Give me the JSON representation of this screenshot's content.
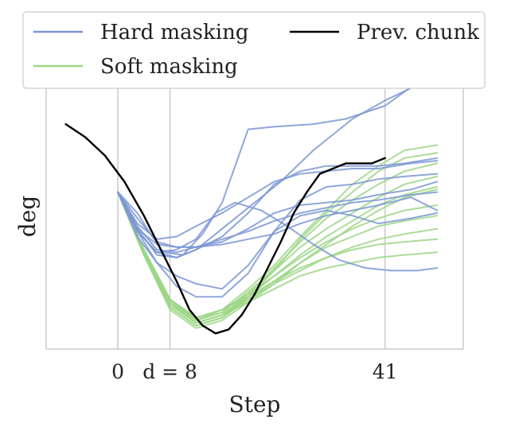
{
  "chart_data": {
    "type": "line",
    "xlabel": "Step",
    "ylabel": "deg",
    "xlim": [
      -11,
      53
    ],
    "ylim": [
      0,
      10
    ],
    "x_ticks": [
      {
        "value": 0,
        "label": "0"
      },
      {
        "value": 8,
        "label": "d = 8"
      },
      {
        "value": 41,
        "label": "41"
      }
    ],
    "show_y_ticks": false,
    "grid": "vertical lines at x ticks",
    "legend_position": "top",
    "legend": [
      {
        "label": "Hard masking",
        "color": "#7b96d4"
      },
      {
        "label": "Prev. chunk",
        "color": "#000000"
      },
      {
        "label": "Soft masking",
        "color": "#9cd686"
      }
    ],
    "series": [
      {
        "group": "Prev. chunk",
        "x": [
          -8,
          -5,
          -2,
          1,
          4,
          7,
          9,
          11,
          13,
          15,
          17,
          19,
          21,
          23,
          25,
          27,
          29,
          31,
          35,
          39,
          41
        ],
        "y": [
          8.6,
          8.1,
          7.4,
          6.4,
          5.1,
          3.6,
          2.6,
          1.5,
          0.9,
          0.6,
          0.75,
          1.3,
          2.1,
          3.1,
          4.1,
          5.2,
          6.0,
          6.7,
          7.1,
          7.1,
          7.3
        ]
      },
      {
        "group": "Hard masking",
        "x": [
          0,
          3,
          5,
          7,
          10,
          13,
          16,
          20,
          24,
          30,
          35,
          41,
          46,
          49
        ],
        "y": [
          6.0,
          5.2,
          4.4,
          3.7,
          3.6,
          4.4,
          5.6,
          8.4,
          8.5,
          8.6,
          8.8,
          9.3,
          10.2,
          10.3
        ]
      },
      {
        "group": "Hard masking",
        "x": [
          0,
          3,
          6,
          9,
          12,
          16,
          20,
          25,
          30,
          36,
          41,
          46,
          49
        ],
        "y": [
          6.0,
          4.5,
          3.7,
          3.5,
          3.8,
          4.6,
          5.4,
          6.4,
          7.6,
          8.8,
          9.5,
          10.1,
          10.3
        ]
      },
      {
        "group": "Hard masking",
        "x": [
          0,
          3,
          6,
          9,
          12,
          16,
          20,
          24,
          28,
          32,
          36,
          40,
          45,
          49
        ],
        "y": [
          6.0,
          4.8,
          4.2,
          4.3,
          4.7,
          5.2,
          5.8,
          6.4,
          6.7,
          6.8,
          6.9,
          6.9,
          7.1,
          7.2
        ]
      },
      {
        "group": "Hard masking",
        "x": [
          0,
          3,
          6,
          9,
          12,
          16,
          20,
          24,
          28,
          32,
          36,
          40,
          45,
          49
        ],
        "y": [
          6.0,
          5.0,
          4.1,
          3.9,
          3.9,
          4.1,
          4.6,
          5.2,
          5.5,
          5.6,
          5.7,
          5.9,
          6.1,
          6.4
        ]
      },
      {
        "group": "Hard masking",
        "x": [
          0,
          3,
          6,
          9,
          12,
          16,
          20,
          24,
          28,
          32,
          36,
          40,
          45,
          49
        ],
        "y": [
          6.0,
          4.7,
          3.8,
          3.7,
          3.9,
          4.2,
          4.5,
          4.9,
          5.2,
          5.4,
          5.6,
          5.7,
          5.9,
          6.0
        ]
      },
      {
        "group": "Hard masking",
        "x": [
          0,
          3,
          6,
          9,
          12,
          15,
          18,
          22,
          26,
          30,
          34,
          38,
          42,
          46,
          49
        ],
        "y": [
          6.0,
          4.5,
          3.7,
          3.8,
          4.2,
          5.2,
          5.6,
          5.3,
          4.7,
          4.0,
          3.4,
          3.1,
          3.0,
          3.0,
          3.1
        ]
      },
      {
        "group": "Hard masking",
        "x": [
          0,
          3,
          6,
          9,
          12,
          16,
          20,
          24,
          28,
          32,
          36,
          40,
          45,
          49
        ],
        "y": [
          6.0,
          4.6,
          4.0,
          3.9,
          3.9,
          4.0,
          4.2,
          4.4,
          4.8,
          5.1,
          5.3,
          5.5,
          5.8,
          5.3
        ]
      },
      {
        "group": "Hard masking",
        "x": [
          0,
          3,
          6,
          9,
          12,
          16,
          20,
          24,
          28,
          32,
          36,
          40,
          45,
          49
        ],
        "y": [
          6.0,
          4.3,
          3.3,
          2.8,
          2.5,
          2.3,
          3.2,
          4.5,
          5.1,
          5.3,
          5.1,
          4.8,
          5.0,
          5.2
        ]
      },
      {
        "group": "Hard masking",
        "x": [
          0,
          3,
          6,
          9,
          12,
          16,
          20,
          24,
          28,
          32,
          36,
          40,
          44,
          49
        ],
        "y": [
          6.0,
          4.5,
          3.3,
          2.4,
          2.0,
          2.0,
          2.9,
          4.5,
          5.7,
          6.2,
          6.3,
          6.5,
          6.6,
          6.7
        ]
      },
      {
        "group": "Hard masking",
        "x": [
          0,
          3,
          6,
          9,
          12,
          16,
          20,
          24,
          28,
          32,
          36,
          40,
          44,
          49
        ],
        "y": [
          6.0,
          4.6,
          3.6,
          3.5,
          3.8,
          4.3,
          5.2,
          6.3,
          6.8,
          7.0,
          7.0,
          7.0,
          7.1,
          7.3
        ]
      },
      {
        "group": "Soft masking",
        "x": [
          0,
          4,
          8,
          12,
          16,
          20,
          24,
          28,
          32,
          36,
          40,
          44,
          49
        ],
        "y": [
          6.0,
          3.8,
          1.9,
          1.1,
          1.5,
          2.3,
          3.2,
          4.3,
          5.3,
          6.3,
          7.0,
          7.6,
          7.8
        ]
      },
      {
        "group": "Soft masking",
        "x": [
          0,
          4,
          8,
          12,
          16,
          20,
          24,
          28,
          32,
          36,
          40,
          44,
          49
        ],
        "y": [
          6.0,
          3.6,
          1.6,
          0.9,
          1.2,
          2.0,
          3.0,
          4.2,
          5.2,
          6.0,
          6.8,
          7.3,
          7.5
        ]
      },
      {
        "group": "Soft masking",
        "x": [
          0,
          4,
          8,
          12,
          16,
          20,
          24,
          28,
          32,
          36,
          40,
          44,
          49
        ],
        "y": [
          6.0,
          3.7,
          1.8,
          1.0,
          1.3,
          2.1,
          3.1,
          4.1,
          5.0,
          5.7,
          6.3,
          6.8,
          7.1
        ]
      },
      {
        "group": "Soft masking",
        "x": [
          0,
          4,
          8,
          12,
          16,
          20,
          24,
          28,
          32,
          36,
          40,
          44,
          49
        ],
        "y": [
          6.0,
          3.8,
          1.9,
          1.1,
          1.4,
          2.2,
          3.0,
          3.9,
          4.6,
          5.2,
          5.8,
          6.3,
          6.6
        ]
      },
      {
        "group": "Soft masking",
        "x": [
          0,
          4,
          8,
          12,
          16,
          20,
          24,
          28,
          32,
          36,
          40,
          44,
          49
        ],
        "y": [
          6.0,
          3.7,
          1.7,
          1.0,
          1.3,
          2.0,
          2.8,
          3.6,
          4.3,
          4.9,
          5.5,
          5.9,
          6.2
        ]
      },
      {
        "group": "Soft masking",
        "x": [
          0,
          4,
          8,
          12,
          16,
          20,
          24,
          28,
          32,
          36,
          40,
          44,
          49
        ],
        "y": [
          6.0,
          3.8,
          1.9,
          1.2,
          1.5,
          2.1,
          2.8,
          3.5,
          4.1,
          4.6,
          5.0,
          5.3,
          5.5
        ]
      },
      {
        "group": "Soft masking",
        "x": [
          0,
          4,
          8,
          12,
          16,
          20,
          24,
          28,
          32,
          36,
          40,
          44,
          49
        ],
        "y": [
          6.0,
          3.6,
          1.6,
          0.9,
          1.2,
          1.9,
          2.6,
          3.3,
          3.9,
          4.3,
          4.7,
          4.9,
          5.1
        ]
      },
      {
        "group": "Soft masking",
        "x": [
          0,
          4,
          8,
          12,
          16,
          20,
          24,
          28,
          32,
          36,
          40,
          44,
          49
        ],
        "y": [
          6.0,
          3.7,
          1.8,
          1.1,
          1.4,
          1.9,
          2.5,
          3.0,
          3.5,
          3.9,
          4.2,
          4.4,
          4.6
        ]
      },
      {
        "group": "Soft masking",
        "x": [
          0,
          4,
          8,
          12,
          16,
          20,
          24,
          28,
          32,
          36,
          40,
          44,
          49
        ],
        "y": [
          6.0,
          3.7,
          1.7,
          1.0,
          1.3,
          1.8,
          2.3,
          2.8,
          3.1,
          3.3,
          3.5,
          3.6,
          3.7
        ]
      },
      {
        "group": "Soft masking",
        "x": [
          0,
          4,
          8,
          12,
          16,
          20,
          24,
          28,
          32,
          36,
          40,
          44,
          49
        ],
        "y": [
          6.0,
          3.8,
          1.9,
          1.2,
          1.5,
          2.0,
          2.6,
          3.1,
          3.5,
          3.8,
          4.0,
          4.1,
          4.2
        ]
      },
      {
        "group": "Soft masking",
        "x": [
          0,
          4,
          8,
          12,
          16,
          20,
          24,
          28,
          32,
          36,
          40,
          44,
          49
        ],
        "y": [
          6.0,
          3.6,
          1.5,
          0.8,
          1.1,
          1.8,
          2.5,
          3.3,
          4.0,
          4.7,
          5.3,
          5.8,
          6.1
        ]
      }
    ]
  }
}
